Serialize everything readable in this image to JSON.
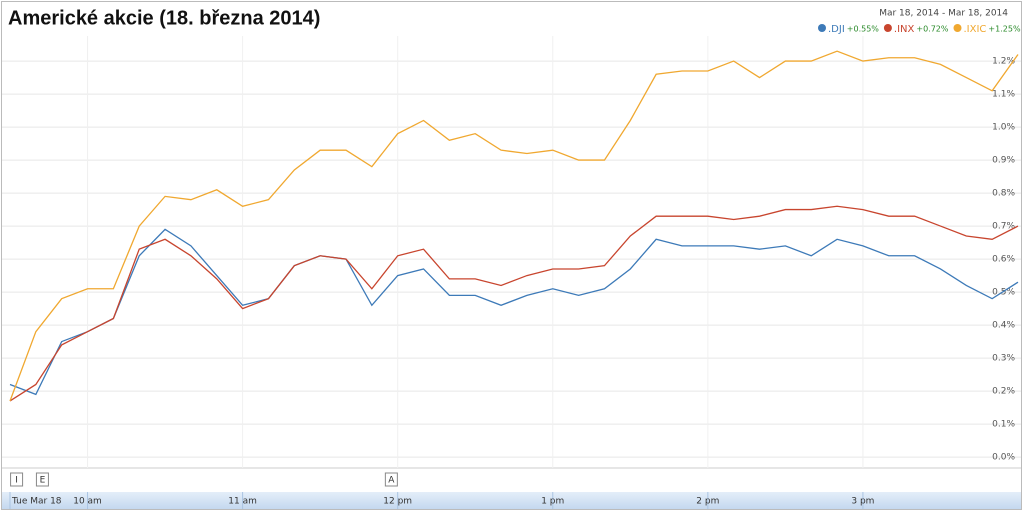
{
  "chart_data": {
    "type": "line",
    "title": "Americké akcie (18. března 2014)",
    "date_range": "Mar 18, 2014  -  Mar 18, 2014",
    "x": [
      570,
      580,
      590,
      600,
      610,
      620,
      630,
      640,
      650,
      660,
      670,
      680,
      690,
      700,
      710,
      720,
      730,
      740,
      750,
      760,
      770,
      780,
      790,
      800,
      810,
      820,
      830,
      840,
      850,
      860,
      870,
      880,
      890,
      900,
      910,
      920,
      930,
      940,
      950,
      960
    ],
    "xlim": [
      570,
      960
    ],
    "xticks": [
      {
        "value": 570,
        "label": "Tue Mar 18"
      },
      {
        "value": 600,
        "label": "10 am"
      },
      {
        "value": 660,
        "label": "11 am"
      },
      {
        "value": 720,
        "label": "12 pm"
      },
      {
        "value": 780,
        "label": "1 pm"
      },
      {
        "value": 840,
        "label": "2 pm"
      },
      {
        "value": 900,
        "label": "3 pm"
      }
    ],
    "ylim": [
      -0.024,
      1.276
    ],
    "yticks": [
      {
        "value": 0,
        "label": "0.0%"
      },
      {
        "value": 0.1,
        "label": "0.1%"
      },
      {
        "value": 0.2,
        "label": "0.2%"
      },
      {
        "value": 0.3,
        "label": "0.3%"
      },
      {
        "value": 0.4,
        "label": "0.4%"
      },
      {
        "value": 0.5,
        "label": "0.5%"
      },
      {
        "value": 0.6,
        "label": "0.6%"
      },
      {
        "value": 0.7,
        "label": "0.7%"
      },
      {
        "value": 0.8,
        "label": "0.8%"
      },
      {
        "value": 0.9,
        "label": "0.9%"
      },
      {
        "value": 1.0,
        "label": "1.0%"
      },
      {
        "value": 1.1,
        "label": "1.1%"
      },
      {
        "value": 1.2,
        "label": "1.2%"
      }
    ],
    "grid": true,
    "series": [
      {
        "name": ".DJI",
        "change": "+0.55%",
        "color": "#3d7ab8",
        "values": [
          0.22,
          0.19,
          0.35,
          0.38,
          0.42,
          0.61,
          0.69,
          0.64,
          0.55,
          0.46,
          0.48,
          0.58,
          0.61,
          0.6,
          0.46,
          0.55,
          0.57,
          0.49,
          0.49,
          0.46,
          0.49,
          0.51,
          0.49,
          0.51,
          0.57,
          0.66,
          0.64,
          0.64,
          0.64,
          0.63,
          0.64,
          0.61,
          0.66,
          0.64,
          0.61,
          0.61,
          0.57,
          0.52,
          0.48,
          0.53
        ]
      },
      {
        "name": ".INX",
        "change": "+0.72%",
        "color": "#c8452e",
        "values": [
          0.17,
          0.22,
          0.34,
          0.38,
          0.42,
          0.63,
          0.66,
          0.61,
          0.54,
          0.45,
          0.48,
          0.58,
          0.61,
          0.6,
          0.51,
          0.61,
          0.63,
          0.54,
          0.54,
          0.52,
          0.55,
          0.57,
          0.57,
          0.58,
          0.67,
          0.73,
          0.73,
          0.73,
          0.72,
          0.73,
          0.75,
          0.75,
          0.76,
          0.75,
          0.73,
          0.73,
          0.7,
          0.67,
          0.66,
          0.7
        ]
      },
      {
        "name": ".IXIC",
        "change": "+1.25%",
        "color": "#f0a830",
        "values": [
          0.17,
          0.38,
          0.48,
          0.51,
          0.51,
          0.7,
          0.79,
          0.78,
          0.81,
          0.76,
          0.78,
          0.87,
          0.93,
          0.93,
          0.88,
          0.98,
          1.02,
          0.96,
          0.98,
          0.93,
          0.92,
          0.93,
          0.9,
          0.9,
          1.02,
          1.16,
          1.17,
          1.17,
          1.2,
          1.15,
          1.2,
          1.2,
          1.23,
          1.2,
          1.21,
          1.21,
          1.19,
          1.15,
          1.11,
          1.22
        ]
      }
    ],
    "change_color": "#2a8a2a",
    "annotations": [
      {
        "x": 571,
        "label": "I"
      },
      {
        "x": 581,
        "label": "E"
      },
      {
        "x": 716,
        "label": "A"
      }
    ]
  }
}
